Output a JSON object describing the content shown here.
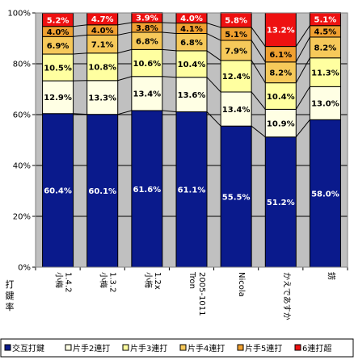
{
  "chart_data": {
    "type": "bar",
    "stacked": true,
    "percent": true,
    "ylabel": "打鍵率",
    "ylim": [
      0,
      100
    ],
    "yticks": [
      "0%",
      "20%",
      "40%",
      "60%",
      "80%",
      "100%"
    ],
    "grid": true,
    "legend_position": "bottom",
    "categories": [
      "小梅 1.4.2",
      "小梅 1.3.2",
      "小梅 1.2x",
      "Tron 2005-1011",
      "Nicola",
      "かえであすか",
      "錺"
    ],
    "series": [
      {
        "name": "交互打鍵",
        "color": "#0a1a8c",
        "values": [
          60.4,
          60.1,
          61.6,
          61.1,
          55.5,
          51.2,
          58.0
        ],
        "labels": [
          "60.4%",
          "60.1%",
          "61.6%",
          "61.1%",
          "55.5%",
          "51.2%",
          "58.0%"
        ]
      },
      {
        "name": "片手2連打",
        "color": "#ffffe4",
        "values": [
          12.9,
          13.3,
          13.4,
          13.6,
          13.4,
          10.9,
          13.0
        ],
        "labels": [
          "12.9%",
          "13.3%",
          "13.4%",
          "13.6%",
          "13.4%",
          "10.9%",
          "13.0%"
        ]
      },
      {
        "name": "片手3連打",
        "color": "#ffffa0",
        "values": [
          10.5,
          10.8,
          10.6,
          10.4,
          12.4,
          10.4,
          11.3
        ],
        "labels": [
          "10.5%",
          "10.8%",
          "10.6%",
          "10.4%",
          "12.4%",
          "10.4%",
          "11.3%"
        ]
      },
      {
        "name": "片手4連打",
        "color": "#f6c95a",
        "values": [
          6.9,
          7.1,
          6.8,
          6.8,
          7.9,
          8.2,
          8.2
        ],
        "labels": [
          "6.9%",
          "7.1%",
          "6.8%",
          "6.8%",
          "7.9%",
          "8.2%",
          "8.2%"
        ]
      },
      {
        "name": "片手5連打",
        "color": "#f0a030",
        "values": [
          4.0,
          4.0,
          3.8,
          4.1,
          5.1,
          6.1,
          4.5
        ],
        "labels": [
          "4.0%",
          "4.0%",
          "3.8%",
          "4.1%",
          "5.1%",
          "6.1%",
          "4.5%"
        ]
      },
      {
        "name": "6連打超",
        "color": "#ee1111",
        "values": [
          5.2,
          4.7,
          3.9,
          4.0,
          5.8,
          13.2,
          5.1
        ],
        "labels": [
          "5.2%",
          "4.7%",
          "3.9%",
          "4.0%",
          "5.8%",
          "13.2%",
          "5.1%"
        ]
      }
    ]
  }
}
